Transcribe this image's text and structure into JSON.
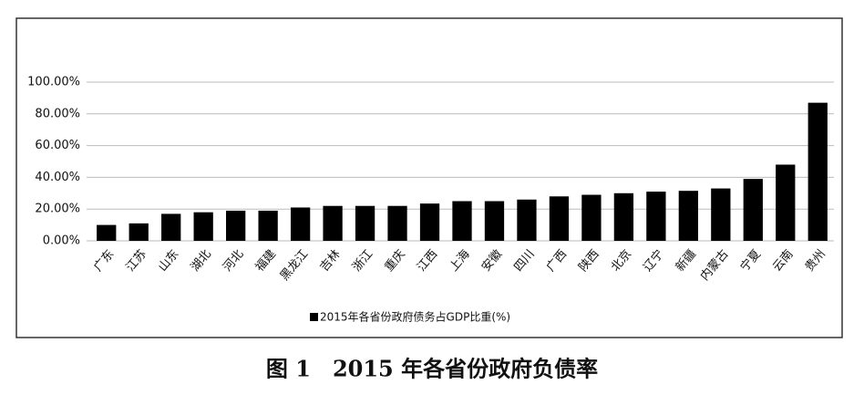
{
  "chart_data": {
    "type": "bar",
    "caption": "图 1　2015 年各省份政府负债率",
    "categories": [
      "广东",
      "江苏",
      "山东",
      "湖北",
      "河北",
      "福建",
      "黑龙江",
      "吉林",
      "浙江",
      "重庆",
      "江西",
      "上海",
      "安徽",
      "四川",
      "广西",
      "陕西",
      "北京",
      "辽宁",
      "新疆",
      "内蒙古",
      "宁夏",
      "云南",
      "贵州"
    ],
    "series": [
      {
        "name": "2015年各省份政府债务占GDP比重(%)",
        "color": "#000000",
        "values": [
          10,
          11,
          17,
          18,
          19,
          19,
          21,
          22,
          22,
          22,
          23.5,
          25,
          25,
          26,
          28,
          29,
          30,
          31,
          31.5,
          33,
          39,
          48,
          87
        ]
      }
    ],
    "ylim": [
      0,
      100
    ],
    "yticks": [
      {
        "value": 0,
        "label": "0.00%"
      },
      {
        "value": 20,
        "label": "20.00%"
      },
      {
        "value": 40,
        "label": "40.00%"
      },
      {
        "value": 60,
        "label": "60.00%"
      },
      {
        "value": 80,
        "label": "80.00%"
      },
      {
        "value": 100,
        "label": "100.00%"
      }
    ],
    "grid": true,
    "legend": "bottom"
  }
}
